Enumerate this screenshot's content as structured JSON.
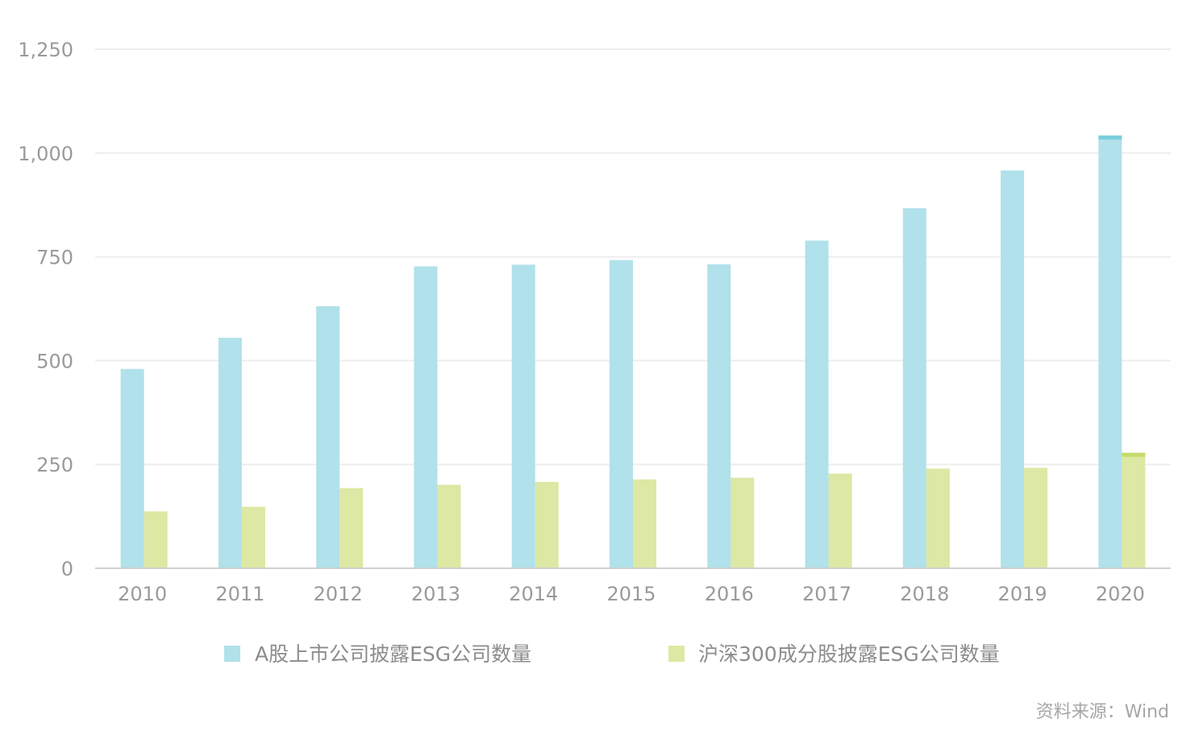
{
  "chart_data": {
    "type": "bar",
    "categories": [
      "2010",
      "2011",
      "2012",
      "2013",
      "2014",
      "2015",
      "2016",
      "2017",
      "2018",
      "2019",
      "2020"
    ],
    "series": [
      {
        "name": "A股上市公司披露ESG公司数量",
        "color": "#b1e1ea",
        "highlight_color": "#79cfdc",
        "values": [
          480,
          555,
          631,
          727,
          731,
          742,
          732,
          789,
          867,
          958,
          1042
        ]
      },
      {
        "name": "沪深300成分股披露ESG公司数量",
        "color": "#dce8a3",
        "highlight_color": "#c4dc6a",
        "values": [
          137,
          148,
          193,
          201,
          208,
          214,
          218,
          228,
          240,
          242,
          278
        ]
      }
    ],
    "highlight_category": "2020",
    "ylim": [
      0,
      1250
    ],
    "yticks": [
      0,
      250,
      500,
      750,
      1000,
      1250
    ],
    "ytick_labels": [
      "0",
      "250",
      "500",
      "750",
      "1,000",
      "1,250"
    ],
    "grid": true,
    "legend_position": "bottom-center",
    "title": "",
    "xlabel": "",
    "ylabel": ""
  },
  "source": "资料来源：Wind"
}
